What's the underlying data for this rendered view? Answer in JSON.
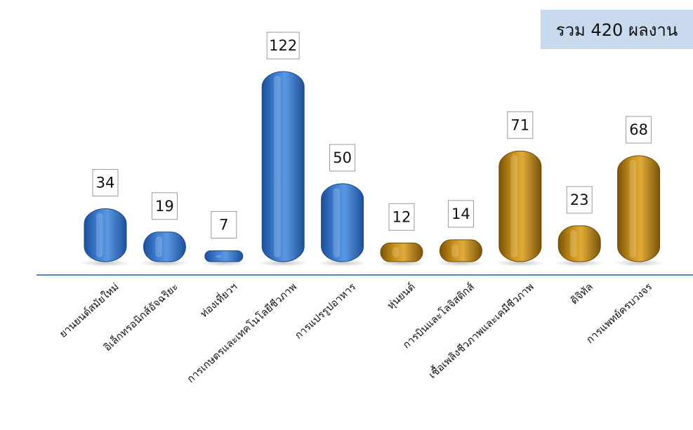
{
  "total_label": "รวม 420 ผลงาน",
  "colors": {
    "blue": "#3f7dd0",
    "blue_dark": "#1d4f99",
    "gold": "#c8901a",
    "gold_dark": "#7a5208",
    "axis": "#4a86c8",
    "label_box_border": "#9a9a9a"
  },
  "chart_data": {
    "type": "bar",
    "categories": [
      "ยานยนต์สมัยใหม่",
      "อิเล็กทรอนิกส์อัจฉริยะ",
      "ท่องเที่ยวฯ",
      "การเกษตรและเทคโนโลยีชีวภาพ",
      "การแปรรูปอาหาร",
      "หุ่นยนต์",
      "การบินและโลจิสติกส์",
      "เชื้อเพลิงชีวภาพและเคมีชีวภาพ",
      "ดิจิทัล",
      "การแพทย์ครบวงจร"
    ],
    "values": [
      34,
      19,
      7,
      122,
      50,
      12,
      14,
      71,
      23,
      68
    ],
    "bar_colors": [
      "blue",
      "blue",
      "blue",
      "blue",
      "blue",
      "gold",
      "gold",
      "gold",
      "gold",
      "gold"
    ],
    "ylim": [
      0,
      130
    ],
    "grid": false,
    "legend": "none",
    "data_labels": true
  }
}
